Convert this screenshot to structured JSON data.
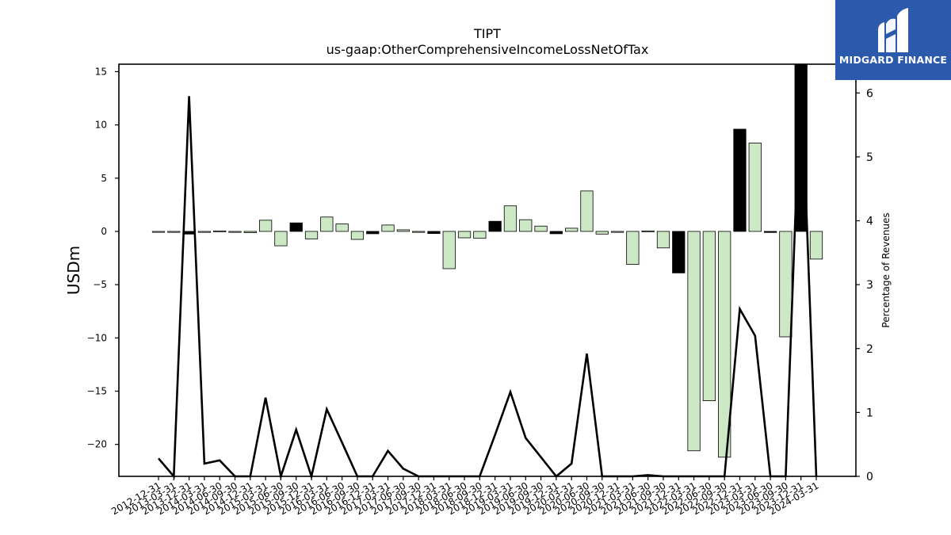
{
  "chart_data": {
    "type": "bar",
    "title": "TIPT",
    "subtitle": "us-gaap:OtherComprehensiveIncomeLossNetOfTax",
    "ylabel": "USDm",
    "y2label": "Percentage of Revenues",
    "ylim": [
      -23,
      15.7
    ],
    "y2lim": [
      0,
      6.45
    ],
    "yticks": [
      15,
      10,
      5,
      0,
      -5,
      -10,
      -15,
      -20
    ],
    "y2ticks": [
      0,
      1,
      2,
      3,
      4,
      5,
      6
    ],
    "colors": {
      "positive": "#cde8c4",
      "negative_highlight": "#000000",
      "line": "#000000",
      "edge": "#000000"
    },
    "categories": [
      "2012-12-31",
      "2013-03-31",
      "2013-12-31",
      "2014-03-31",
      "2014-06-30",
      "2014-09-30",
      "2014-12-31",
      "2015-03-31",
      "2015-06-30",
      "2015-09-30",
      "2015-12-31",
      "2016-03-31",
      "2016-06-30",
      "2016-09-30",
      "2016-12-31",
      "2017-03-31",
      "2017-06-30",
      "2017-09-30",
      "2017-12-31",
      "2018-03-31",
      "2018-06-30",
      "2018-09-30",
      "2018-12-31",
      "2019-03-31",
      "2019-06-30",
      "2019-09-30",
      "2019-12-31",
      "2020-03-31",
      "2020-06-30",
      "2020-09-30",
      "2020-12-31",
      "2021-03-31",
      "2021-06-30",
      "2021-09-30",
      "2021-12-31",
      "2022-03-31",
      "2022-06-30",
      "2022-09-30",
      "2022-12-31",
      "2023-03-31",
      "2023-06-30",
      "2023-09-30",
      "2023-12-31",
      "2024-03-31"
    ],
    "series": [
      {
        "kind": "bar",
        "values": [
          -0.05,
          -0.05,
          -0.25,
          -0.03,
          0.05,
          -0.07,
          -0.12,
          1.05,
          -1.35,
          0.8,
          -0.7,
          1.35,
          0.7,
          -0.75,
          -0.22,
          0.6,
          0.15,
          -0.08,
          -0.2,
          -3.5,
          -0.6,
          -0.65,
          0.95,
          2.4,
          1.1,
          0.5,
          -0.22,
          0.3,
          3.8,
          -0.25,
          -0.03,
          -3.1,
          0.05,
          -1.55,
          -3.9,
          -20.6,
          -15.9,
          -21.2,
          9.6,
          8.3,
          -0.1,
          -9.9,
          15.7,
          -2.6
        ],
        "highlight": [
          false,
          false,
          true,
          false,
          false,
          false,
          false,
          false,
          false,
          true,
          false,
          false,
          false,
          false,
          true,
          false,
          false,
          false,
          true,
          false,
          false,
          false,
          true,
          false,
          false,
          false,
          true,
          false,
          false,
          false,
          false,
          false,
          false,
          false,
          true,
          false,
          false,
          false,
          true,
          false,
          true,
          false,
          true,
          false
        ]
      },
      {
        "kind": "line",
        "axis": "right",
        "values": [
          0.28,
          0.0,
          5.95,
          0.2,
          0.25,
          0.0,
          0.0,
          1.23,
          0.0,
          0.73,
          0.0,
          1.05,
          0.53,
          0.0,
          0.0,
          0.4,
          0.12,
          0.0,
          0.0,
          0.0,
          0.0,
          0.0,
          0.65,
          1.32,
          0.6,
          0.3,
          0.0,
          0.2,
          1.92,
          0.0,
          0.0,
          0.0,
          0.02,
          0.0,
          0.0,
          0.0,
          0.0,
          0.0,
          2.62,
          2.2,
          0.0,
          0.0,
          6.45,
          0.0
        ]
      }
    ]
  },
  "logo": {
    "text": "MIDGARD FINANCE"
  }
}
